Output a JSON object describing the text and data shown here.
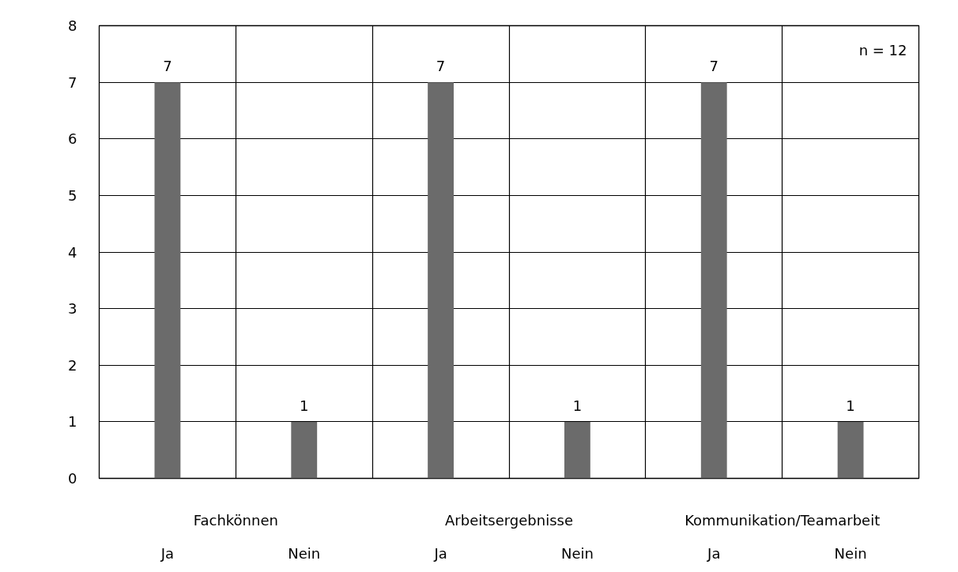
{
  "chart_data": {
    "type": "bar",
    "categories": [
      "Ja",
      "Nein",
      "Ja",
      "Nein",
      "Ja",
      "Nein"
    ],
    "values": [
      7,
      1,
      7,
      1,
      7,
      1
    ],
    "color": "#6b6b6b",
    "ylim": [
      0,
      8
    ],
    "yticks": [
      0,
      1,
      2,
      3,
      4,
      5,
      6,
      7,
      8
    ],
    "grid": true,
    "data_labels": true,
    "annotations": [
      "n = 12",
      "Fachkönnen",
      "Arbeitsergebnisse",
      "Kommunikation/Teamarbeit"
    ]
  }
}
